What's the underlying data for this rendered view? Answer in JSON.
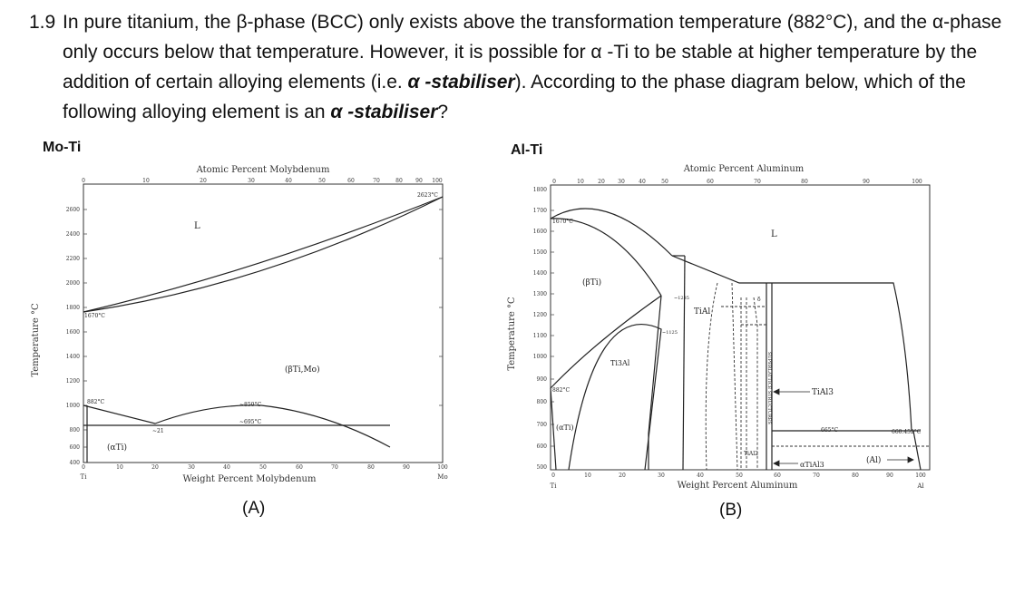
{
  "question": {
    "number": "1.9",
    "part1": "In pure titanium, the β-phase (BCC) only exists above the transformation temperature (882°C), and the α-phase only occurs below that temperature. However, it is possible for α -Ti to be stable at higher temperature by the addition of certain alloying elements (i.e. ",
    "emph1": "α -stabiliser",
    "part2": "). According to the phase diagram below, which of the following alloying element is an ",
    "emph2": "α -stabiliser",
    "part3": "?"
  },
  "diagram_a": {
    "subtitle": "Mo-Ti",
    "caption": "(A)",
    "top_axis_label": "Atomic Percent Molybdenum",
    "top_ticks": [
      "10",
      "20",
      "30",
      "40",
      "50",
      "60",
      "70",
      "80",
      "90",
      "100"
    ],
    "bottom_axis_label": "Weight Percent Molybdenum",
    "bottom_ticks": [
      "0",
      "10",
      "20",
      "30",
      "40",
      "50",
      "60",
      "70",
      "80",
      "90",
      "100"
    ],
    "left_end": "Ti",
    "right_end": "Mo",
    "y_axis_label": "Temperature °C",
    "y_ticks": [
      "2600",
      "2400",
      "2200",
      "2000",
      "1800",
      "1600",
      "1400",
      "1200",
      "1000",
      "800",
      "600",
      "400"
    ],
    "labels": {
      "liquid": "L",
      "beta": "(βTi,Mo)",
      "alpha": "(αTi)",
      "t2623": "2623°C",
      "t1670": "1670°C",
      "t882": "882°C",
      "t850": "~850°C",
      "t695": "~695°C",
      "c21": "~21"
    }
  },
  "diagram_b": {
    "subtitle": "Al-Ti",
    "caption": "(B)",
    "top_axis_label": "Atomic Percent Aluminum",
    "top_ticks": [
      "0",
      "10",
      "20",
      "30",
      "40",
      "50",
      "60",
      "70",
      "80",
      "90",
      "100"
    ],
    "bottom_axis_label": "Weight Percent Aluminum",
    "bottom_ticks": [
      "0",
      "10",
      "20",
      "30",
      "40",
      "50",
      "60",
      "70",
      "80",
      "90",
      "100"
    ],
    "left_end": "Ti",
    "right_end": "Al",
    "y_axis_label": "Temperature °C",
    "y_ticks": [
      "1800",
      "1700",
      "1600",
      "1500",
      "1400",
      "1300",
      "1200",
      "1100",
      "1000",
      "900",
      "800",
      "700",
      "600",
      "500"
    ],
    "labels": {
      "liquid": "L",
      "beta": "(βTi)",
      "alpha": "(αTi)",
      "ti3al": "Ti3Al",
      "tial": "TiAl",
      "tial3": "TiAl3",
      "tial2": "TiAl2",
      "atial3": "αTiAl3",
      "al": "(Al)",
      "superlattice": "SUPERLATTICE STRUCTURES",
      "t1670": "1670°C",
      "t882": "882°C",
      "t665": "665°C",
      "t660": "660.452°C",
      "t1285": "~1285",
      "t1125": "~1125",
      "delta": "δ"
    }
  }
}
